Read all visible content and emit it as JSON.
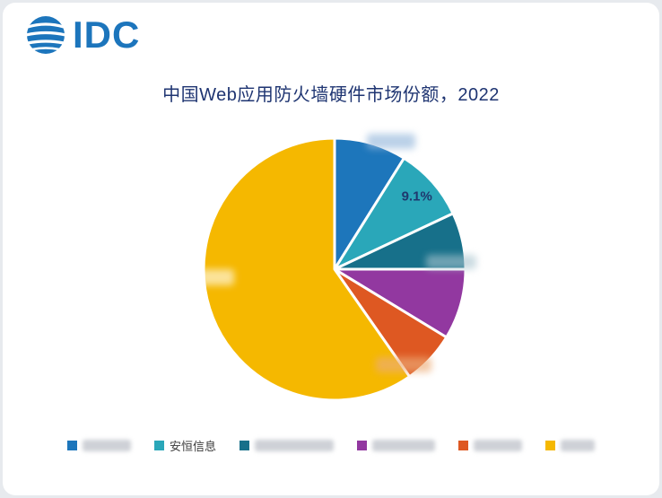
{
  "logo": {
    "text": "IDC"
  },
  "title": "中国Web应用防火墙硬件市场份额，2022",
  "visible_slice_label": "9.1%",
  "visible_legend_label": "安恒信息",
  "colors": {
    "brand_blue": "#1C75BC",
    "title_navy": "#1F3572",
    "label_navy": "#1F386E"
  },
  "chart_data": {
    "type": "pie",
    "title": "中国Web应用防火墙硬件市场份额，2022",
    "unit": "%",
    "legend_position": "bottom",
    "start_angle_deg_from_top": 0,
    "direction": "clockwise",
    "series": [
      {
        "name": "",
        "value": 8.9,
        "color": "#1D76BB",
        "label": "",
        "blurred": true
      },
      {
        "name": "安恒信息",
        "value": 9.1,
        "color": "#2AA7B9",
        "label": "9.1%",
        "blurred": false
      },
      {
        "name": "",
        "value": 7.0,
        "color": "#17708A",
        "label": "",
        "blurred": true
      },
      {
        "name": "",
        "value": 8.7,
        "color": "#9238A0",
        "label": "",
        "blurred": true
      },
      {
        "name": "",
        "value": 6.6,
        "color": "#DE5822",
        "label": "",
        "blurred": true
      },
      {
        "name": "",
        "value": 59.7,
        "color": "#F5B800",
        "label": "",
        "blurred": true
      }
    ]
  }
}
